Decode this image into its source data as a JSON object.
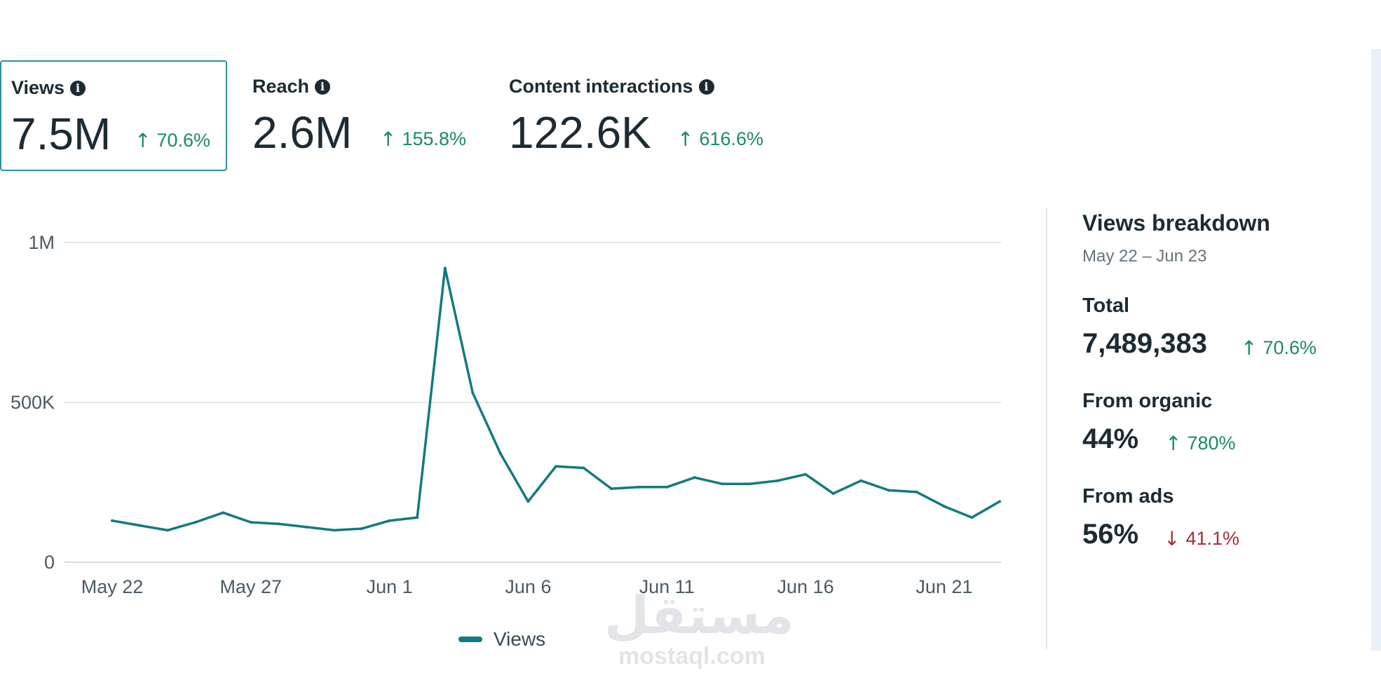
{
  "metrics": [
    {
      "label": "Views",
      "value": "7.5M",
      "delta": "70.6%",
      "selected": true
    },
    {
      "label": "Reach",
      "value": "2.6M",
      "delta": "155.8%",
      "selected": false
    },
    {
      "label": "Content interactions",
      "value": "122.6K",
      "delta": "616.6%",
      "selected": false
    }
  ],
  "info_icon": "info-icon",
  "chart_data": {
    "type": "line",
    "title": "",
    "xlabel": "",
    "ylabel": "",
    "ylim": [
      0,
      1000000
    ],
    "y_ticks": [
      {
        "value": 0,
        "label": "0"
      },
      {
        "value": 500000,
        "label": "500K"
      },
      {
        "value": 1000000,
        "label": "1M"
      }
    ],
    "x_ticks": [
      {
        "index": 0,
        "label": "May 22"
      },
      {
        "index": 5,
        "label": "May 27"
      },
      {
        "index": 10,
        "label": "Jun 1"
      },
      {
        "index": 15,
        "label": "Jun 6"
      },
      {
        "index": 20,
        "label": "Jun 11"
      },
      {
        "index": 25,
        "label": "Jun 16"
      },
      {
        "index": 30,
        "label": "Jun 21"
      }
    ],
    "x": [
      "May 22",
      "May 23",
      "May 24",
      "May 25",
      "May 26",
      "May 27",
      "May 28",
      "May 29",
      "May 30",
      "May 31",
      "Jun 1",
      "Jun 2",
      "Jun 3",
      "Jun 4",
      "Jun 5",
      "Jun 6",
      "Jun 7",
      "Jun 8",
      "Jun 9",
      "Jun 10",
      "Jun 11",
      "Jun 12",
      "Jun 13",
      "Jun 14",
      "Jun 15",
      "Jun 16",
      "Jun 17",
      "Jun 18",
      "Jun 19",
      "Jun 20",
      "Jun 21",
      "Jun 22",
      "Jun 23"
    ],
    "series": [
      {
        "name": "Views",
        "color": "#137a7f",
        "values": [
          130000,
          115000,
          100000,
          125000,
          155000,
          125000,
          120000,
          110000,
          100000,
          105000,
          130000,
          140000,
          920000,
          530000,
          340000,
          190000,
          300000,
          295000,
          230000,
          235000,
          235000,
          265000,
          245000,
          245000,
          255000,
          275000,
          215000,
          255000,
          225000,
          220000,
          175000,
          140000,
          190000
        ]
      }
    ],
    "grid": true,
    "legend_position": "bottom-center"
  },
  "legend": {
    "label": "Views"
  },
  "breakdown": {
    "title": "Views breakdown",
    "date_range": "May 22 – Jun 23",
    "total_label": "Total",
    "total_value": "7,489,383",
    "total_delta": "70.6%",
    "organic_label": "From organic",
    "organic_value": "44%",
    "organic_delta": "780%",
    "ads_label": "From ads",
    "ads_value": "56%",
    "ads_delta": "41.1%"
  },
  "watermark": {
    "arabic": "مستقل",
    "latin": "mostaql.com"
  }
}
